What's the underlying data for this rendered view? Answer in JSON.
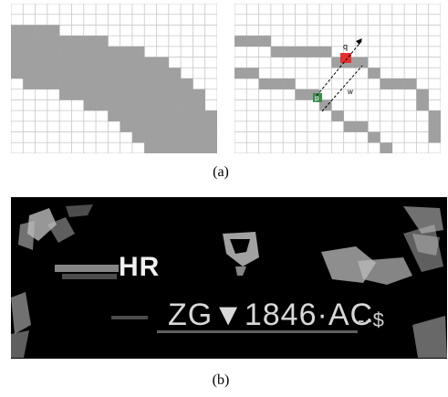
{
  "figure": {
    "caption_a": "(a)",
    "caption_b": "(b)"
  },
  "panel_a": {
    "label_q": "q",
    "label_p": "p",
    "label_w": "w",
    "colors": {
      "grid": "#c8c8c8",
      "fill": "#a0a0a0",
      "q_pixel": "#e53030",
      "p_pixel": "#3c8c4c",
      "arrow": "#000000"
    }
  },
  "panel_b": {
    "country_code": "HR",
    "plate_number": "ZG▼1846·AC",
    "marker": "--$",
    "colors": {
      "background": "#000000",
      "text": "#e8e8e8"
    }
  }
}
